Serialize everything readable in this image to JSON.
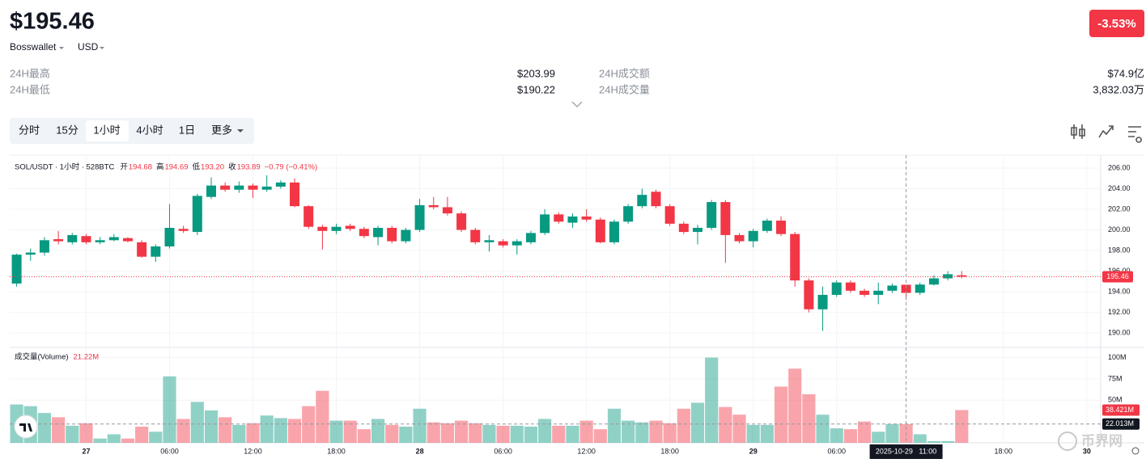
{
  "header": {
    "price": "$195.46",
    "exchange": "Bosswallet",
    "currency": "USD",
    "change": "-3.53%"
  },
  "stats": [
    [
      "24H最高",
      "$203.99"
    ],
    [
      "24H最低",
      "$190.22"
    ],
    [
      "24H成交额",
      "$74.9亿"
    ],
    [
      "24H成交量",
      "3,832.03万"
    ]
  ],
  "tabs": [
    "分时",
    "15分",
    "1小时",
    "4小时",
    "1日",
    "更多"
  ],
  "watermark": "币界网",
  "chart_data": {
    "type": "candlestick",
    "title": "SOL/USDT · 1小时 · 528BTC",
    "ohlc_legend": [
      {
        "label": "开",
        "value": "194.68"
      },
      {
        "label": "高",
        "value": "194.69"
      },
      {
        "label": "低",
        "value": "193.20"
      },
      {
        "label": "收",
        "value": "193.89"
      }
    ],
    "change_text": "−0.79 (−0.41%)",
    "up_color": "#089981",
    "down_color": "#f23645",
    "open": [
      194.8,
      197.6,
      197.8,
      199.1,
      198.8,
      199.4,
      198.8,
      199.0,
      199.2,
      198.8,
      197.4,
      198.4,
      200.1,
      199.8,
      203.2,
      204.3,
      203.9,
      204.3,
      203.9,
      204.2,
      204.6,
      202.3,
      200.3,
      199.9,
      200.4,
      200.1,
      199.3,
      200.2,
      198.9,
      200.0,
      202.4,
      202.2,
      201.6,
      200.0,
      198.8,
      198.9,
      198.5,
      198.8,
      199.7,
      201.5,
      200.7,
      201.3,
      201.0,
      198.8,
      200.8,
      202.3,
      203.7,
      202.3,
      200.6,
      199.8,
      200.2,
      202.7,
      199.5,
      198.9,
      199.9,
      200.9,
      199.6,
      195.1,
      192.3,
      193.7,
      194.9,
      194.1,
      193.7,
      194.1,
      194.68,
      193.9,
      194.7,
      195.3,
      195.6
    ],
    "high": [
      197.7,
      198.2,
      199.3,
      199.9,
      199.7,
      199.6,
      199.3,
      199.6,
      199.3,
      199.0,
      198.6,
      202.5,
      200.4,
      203.5,
      205.1,
      204.6,
      204.7,
      204.5,
      205.3,
      204.8,
      205.0,
      202.4,
      200.5,
      200.6,
      200.6,
      200.3,
      200.4,
      200.4,
      200.2,
      203.0,
      203.2,
      203.2,
      201.8,
      200.2,
      199.5,
      199.1,
      199.1,
      199.9,
      202.0,
      201.7,
      201.6,
      202.0,
      201.2,
      201.0,
      202.5,
      204.0,
      203.9,
      202.5,
      200.8,
      200.5,
      202.9,
      202.9,
      199.7,
      200.1,
      201.1,
      201.3,
      199.8,
      195.3,
      194.5,
      195.1,
      195.1,
      194.3,
      194.9,
      194.8,
      194.69,
      194.9,
      195.6,
      196.0,
      196.0
    ],
    "low": [
      194.5,
      197.0,
      197.5,
      198.6,
      198.6,
      198.6,
      198.6,
      198.9,
      198.8,
      197.3,
      196.9,
      198.2,
      199.7,
      199.5,
      203.0,
      203.7,
      203.6,
      203.1,
      203.7,
      204.0,
      202.2,
      200.1,
      198.1,
      199.6,
      199.9,
      199.2,
      198.5,
      198.7,
      198.7,
      199.8,
      202.0,
      201.4,
      199.8,
      198.6,
      197.9,
      198.3,
      197.6,
      198.6,
      199.5,
      200.6,
      200.2,
      200.8,
      198.7,
      198.6,
      200.6,
      202.1,
      202.1,
      200.4,
      199.6,
      198.6,
      200.0,
      196.8,
      198.7,
      198.3,
      199.7,
      199.4,
      194.5,
      192.0,
      190.2,
      193.5,
      193.9,
      193.5,
      192.8,
      193.9,
      193.2,
      193.7,
      194.6,
      195.1,
      195.3
    ],
    "close": [
      197.6,
      197.8,
      199.0,
      198.9,
      199.5,
      198.8,
      199.0,
      199.3,
      198.9,
      197.4,
      198.4,
      200.2,
      199.9,
      203.3,
      204.3,
      203.9,
      204.3,
      203.9,
      204.2,
      204.6,
      202.3,
      200.3,
      199.9,
      200.3,
      200.1,
      199.4,
      200.2,
      198.9,
      200.0,
      202.4,
      202.2,
      201.6,
      200.0,
      198.8,
      199.0,
      198.5,
      198.9,
      199.7,
      201.5,
      200.8,
      201.3,
      201.0,
      198.8,
      200.8,
      202.3,
      203.4,
      202.3,
      200.6,
      199.8,
      200.2,
      202.7,
      199.5,
      198.9,
      199.9,
      200.9,
      199.6,
      195.1,
      192.3,
      193.7,
      194.9,
      194.1,
      193.7,
      194.1,
      194.6,
      193.89,
      194.7,
      195.3,
      195.7,
      195.46
    ],
    "volumes": [
      45,
      43,
      35,
      30,
      20,
      23,
      5,
      10,
      5,
      19,
      13,
      78,
      28,
      48,
      38,
      30,
      21,
      23,
      32,
      29,
      28,
      43,
      61,
      26,
      26,
      16,
      28,
      21,
      19,
      40,
      24,
      23,
      26,
      23,
      21,
      20,
      20,
      19,
      28,
      20,
      20,
      26,
      16,
      40,
      26,
      24,
      26,
      23,
      40,
      47,
      100,
      42,
      33,
      21,
      21,
      66,
      87,
      57,
      33,
      17,
      16,
      25,
      13,
      22,
      22.013,
      10,
      2,
      2,
      38.421
    ],
    "last_price": 195.46,
    "ylim": [
      188.6,
      207.25
    ],
    "yticks": [
      {
        "value": 190,
        "label": "190.00"
      },
      {
        "value": 192,
        "label": "192.00"
      },
      {
        "value": 194,
        "label": "194.00"
      },
      {
        "value": 196,
        "label": "196.00"
      },
      {
        "value": 198,
        "label": "198.00"
      },
      {
        "value": 200,
        "label": "200.00"
      },
      {
        "value": 202,
        "label": "202.00"
      },
      {
        "value": 204,
        "label": "204.00"
      },
      {
        "value": 206,
        "label": "206.00"
      }
    ],
    "volume_title": "成交量(Volume)",
    "volume_legend": "21.22M",
    "volume_ylim": [
      0,
      110
    ],
    "volume_yticks": [
      {
        "value": 50,
        "label": "50M"
      },
      {
        "value": 75,
        "label": "75M"
      },
      {
        "value": 100,
        "label": "100M"
      }
    ],
    "volume_tags": [
      {
        "value": 38.421,
        "label": "38.421M"
      },
      {
        "value": 22.013,
        "label": "22.013M"
      }
    ],
    "xlim": [
      -0.5,
      78
    ],
    "xticks": [
      {
        "value": 5,
        "label": "27"
      },
      {
        "value": 11,
        "label": "06:00"
      },
      {
        "value": 17,
        "label": "12:00"
      },
      {
        "value": 23,
        "label": "18:00"
      },
      {
        "value": 29,
        "label": "28"
      },
      {
        "value": 35,
        "label": "06:00"
      },
      {
        "value": 41,
        "label": "12:00"
      },
      {
        "value": 47,
        "label": "18:00"
      },
      {
        "value": 53,
        "label": "29"
      },
      {
        "value": 59,
        "label": "06:00"
      },
      {
        "value": 71,
        "label": "18:00"
      },
      {
        "value": 77,
        "label": "30"
      }
    ],
    "crosshair": {
      "value": 64,
      "label": "2025-10-29   11:00"
    }
  }
}
